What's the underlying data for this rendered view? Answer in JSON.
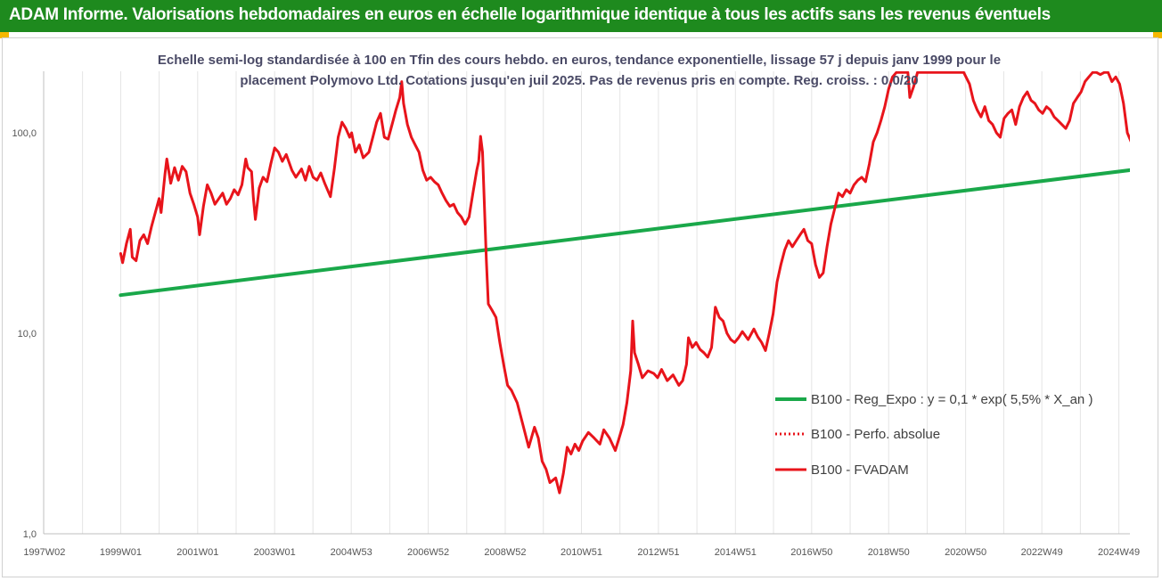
{
  "banner": {
    "title": "ADAM Informe. Valorisations hebdomadaires en euros en échelle logarithmique identique à tous les actifs sans les revenus éventuels"
  },
  "colors": {
    "banner": "#1e8a1e",
    "accent": "#f5b800",
    "regression": "#1aa84a",
    "price": "#e8141b"
  },
  "chart_data": {
    "type": "line",
    "title": "Echelle semi-log standardisée à 100 en Tfin des cours hebdo. en euros, tendance exponentielle, lissage 57 j depuis janv 1999 pour le placement Polymovo Ltd. Cotations jusqu'en juil 2025. Pas de revenus pris en compte. Reg. croiss. : 0,0/20",
    "y_scale": "log",
    "ylim": [
      1,
      200
    ],
    "y_ticks": [
      {
        "label": "1,0",
        "value": 1
      },
      {
        "label": "10,0",
        "value": 10
      },
      {
        "label": "100,0",
        "value": 100
      }
    ],
    "x_range": [
      1997.0,
      2025.6
    ],
    "x_ticks": [
      {
        "label": "1997W02",
        "year": 1997.02
      },
      {
        "label": "1999W01",
        "year": 1999.0
      },
      {
        "label": "2001W01",
        "year": 2001.0
      },
      {
        "label": "2003W01",
        "year": 2003.0
      },
      {
        "label": "2004W53",
        "year": 2004.99
      },
      {
        "label": "2006W52",
        "year": 2006.99
      },
      {
        "label": "2008W52",
        "year": 2008.99
      },
      {
        "label": "2010W51",
        "year": 2010.97
      },
      {
        "label": "2012W51",
        "year": 2012.97
      },
      {
        "label": "2014W51",
        "year": 2014.97
      },
      {
        "label": "2016W50",
        "year": 2016.95
      },
      {
        "label": "2018W50",
        "year": 2018.95
      },
      {
        "label": "2020W50",
        "year": 2020.95
      },
      {
        "label": "2022W49",
        "year": 2022.93
      },
      {
        "label": "2024W49",
        "year": 2024.93
      }
    ],
    "grid": "vertical",
    "legend_position": "right",
    "series": [
      {
        "name": "B100 - Reg_Expo : y = 0,1 * exp( 5,5% *  X_an )",
        "style": "solid",
        "color": "#1aa84a",
        "points": [
          [
            1999.0,
            15.5
          ],
          [
            2025.6,
            66.5
          ]
        ]
      },
      {
        "name": "B100 - Perfo. absolue",
        "style": "dotted",
        "color": "#e8141b",
        "points": []
      },
      {
        "name": "B100 - FVADAM",
        "style": "solid",
        "color": "#e8141b",
        "points": [
          [
            1999.0,
            25
          ],
          [
            1999.05,
            22.5
          ],
          [
            1999.15,
            28
          ],
          [
            1999.25,
            33
          ],
          [
            1999.3,
            24
          ],
          [
            1999.4,
            23
          ],
          [
            1999.5,
            29
          ],
          [
            1999.6,
            31
          ],
          [
            1999.7,
            28
          ],
          [
            1999.8,
            34
          ],
          [
            1999.9,
            40
          ],
          [
            2000.0,
            47
          ],
          [
            2000.05,
            40
          ],
          [
            2000.15,
            62
          ],
          [
            2000.2,
            74
          ],
          [
            2000.3,
            56
          ],
          [
            2000.4,
            67
          ],
          [
            2000.5,
            58
          ],
          [
            2000.6,
            68
          ],
          [
            2000.7,
            64
          ],
          [
            2000.8,
            50
          ],
          [
            2000.9,
            44
          ],
          [
            2001.0,
            38
          ],
          [
            2001.05,
            31
          ],
          [
            2001.15,
            43
          ],
          [
            2001.25,
            55
          ],
          [
            2001.35,
            50
          ],
          [
            2001.45,
            44
          ],
          [
            2001.55,
            47
          ],
          [
            2001.65,
            50
          ],
          [
            2001.75,
            44
          ],
          [
            2001.85,
            47
          ],
          [
            2001.95,
            52
          ],
          [
            2002.05,
            49
          ],
          [
            2002.15,
            55
          ],
          [
            2002.25,
            74
          ],
          [
            2002.3,
            67
          ],
          [
            2002.4,
            64
          ],
          [
            2002.45,
            47
          ],
          [
            2002.5,
            37
          ],
          [
            2002.6,
            53
          ],
          [
            2002.7,
            60
          ],
          [
            2002.8,
            57
          ],
          [
            2002.9,
            70
          ],
          [
            2003.0,
            84
          ],
          [
            2003.1,
            80
          ],
          [
            2003.2,
            72
          ],
          [
            2003.3,
            78
          ],
          [
            2003.45,
            65
          ],
          [
            2003.55,
            60
          ],
          [
            2003.7,
            66
          ],
          [
            2003.8,
            58
          ],
          [
            2003.9,
            68
          ],
          [
            2004.0,
            60
          ],
          [
            2004.1,
            58
          ],
          [
            2004.2,
            63
          ],
          [
            2004.3,
            56
          ],
          [
            2004.45,
            48
          ],
          [
            2004.55,
            66
          ],
          [
            2004.65,
            95
          ],
          [
            2004.75,
            113
          ],
          [
            2004.85,
            105
          ],
          [
            2004.95,
            95
          ],
          [
            2005.0,
            100
          ],
          [
            2005.1,
            80
          ],
          [
            2005.2,
            87
          ],
          [
            2005.3,
            75
          ],
          [
            2005.45,
            80
          ],
          [
            2005.55,
            95
          ],
          [
            2005.65,
            113
          ],
          [
            2005.75,
            125
          ],
          [
            2005.85,
            95
          ],
          [
            2005.95,
            93
          ],
          [
            2006.05,
            110
          ],
          [
            2006.15,
            130
          ],
          [
            2006.25,
            150
          ],
          [
            2006.3,
            180
          ],
          [
            2006.35,
            140
          ],
          [
            2006.45,
            110
          ],
          [
            2006.55,
            95
          ],
          [
            2006.65,
            87
          ],
          [
            2006.75,
            80
          ],
          [
            2006.85,
            65
          ],
          [
            2006.95,
            58
          ],
          [
            2007.05,
            60
          ],
          [
            2007.15,
            57
          ],
          [
            2007.25,
            55
          ],
          [
            2007.35,
            50
          ],
          [
            2007.45,
            46
          ],
          [
            2007.55,
            43
          ],
          [
            2007.65,
            44
          ],
          [
            2007.75,
            40
          ],
          [
            2007.85,
            38
          ],
          [
            2007.95,
            35
          ],
          [
            2008.05,
            38
          ],
          [
            2008.15,
            50
          ],
          [
            2008.25,
            65
          ],
          [
            2008.3,
            72
          ],
          [
            2008.35,
            96
          ],
          [
            2008.4,
            80
          ],
          [
            2008.5,
            23
          ],
          [
            2008.55,
            14
          ],
          [
            2008.65,
            13
          ],
          [
            2008.75,
            12
          ],
          [
            2008.85,
            9
          ],
          [
            2008.95,
            7
          ],
          [
            2009.05,
            5.5
          ],
          [
            2009.15,
            5.2
          ],
          [
            2009.3,
            4.5
          ],
          [
            2009.45,
            3.5
          ],
          [
            2009.6,
            2.7
          ],
          [
            2009.75,
            3.4
          ],
          [
            2009.85,
            3.0
          ],
          [
            2009.95,
            2.3
          ],
          [
            2010.05,
            2.1
          ],
          [
            2010.15,
            1.8
          ],
          [
            2010.3,
            1.9
          ],
          [
            2010.4,
            1.6
          ],
          [
            2010.5,
            2.0
          ],
          [
            2010.6,
            2.7
          ],
          [
            2010.7,
            2.5
          ],
          [
            2010.8,
            2.8
          ],
          [
            2010.9,
            2.6
          ],
          [
            2011.0,
            2.9
          ],
          [
            2011.15,
            3.2
          ],
          [
            2011.3,
            3.0
          ],
          [
            2011.45,
            2.8
          ],
          [
            2011.55,
            3.3
          ],
          [
            2011.7,
            3.0
          ],
          [
            2011.85,
            2.6
          ],
          [
            2011.95,
            3.0
          ],
          [
            2012.05,
            3.5
          ],
          [
            2012.15,
            4.5
          ],
          [
            2012.25,
            6.5
          ],
          [
            2012.3,
            11.5
          ],
          [
            2012.35,
            8
          ],
          [
            2012.45,
            7
          ],
          [
            2012.55,
            6
          ],
          [
            2012.7,
            6.5
          ],
          [
            2012.85,
            6.3
          ],
          [
            2012.95,
            6.0
          ],
          [
            2013.05,
            6.6
          ],
          [
            2013.2,
            5.8
          ],
          [
            2013.35,
            6.2
          ],
          [
            2013.5,
            5.5
          ],
          [
            2013.6,
            5.8
          ],
          [
            2013.7,
            7.0
          ],
          [
            2013.75,
            9.5
          ],
          [
            2013.85,
            8.5
          ],
          [
            2013.95,
            9.0
          ],
          [
            2014.05,
            8.3
          ],
          [
            2014.15,
            8.0
          ],
          [
            2014.25,
            7.6
          ],
          [
            2014.35,
            8.5
          ],
          [
            2014.45,
            13.5
          ],
          [
            2014.55,
            12
          ],
          [
            2014.65,
            11.5
          ],
          [
            2014.75,
            10
          ],
          [
            2014.85,
            9.3
          ],
          [
            2014.95,
            9.0
          ],
          [
            2015.05,
            9.5
          ],
          [
            2015.15,
            10.2
          ],
          [
            2015.3,
            9.3
          ],
          [
            2015.45,
            10.5
          ],
          [
            2015.55,
            9.6
          ],
          [
            2015.65,
            9.0
          ],
          [
            2015.75,
            8.2
          ],
          [
            2015.85,
            10.0
          ],
          [
            2015.95,
            12.5
          ],
          [
            2016.05,
            18
          ],
          [
            2016.15,
            22
          ],
          [
            2016.25,
            26
          ],
          [
            2016.35,
            29
          ],
          [
            2016.45,
            27
          ],
          [
            2016.55,
            29
          ],
          [
            2016.65,
            31
          ],
          [
            2016.75,
            33
          ],
          [
            2016.85,
            29
          ],
          [
            2016.95,
            28
          ],
          [
            2017.05,
            22
          ],
          [
            2017.15,
            19
          ],
          [
            2017.25,
            20
          ],
          [
            2017.35,
            27
          ],
          [
            2017.45,
            35
          ],
          [
            2017.55,
            42
          ],
          [
            2017.65,
            50
          ],
          [
            2017.75,
            48
          ],
          [
            2017.85,
            52
          ],
          [
            2017.95,
            50
          ],
          [
            2018.05,
            55
          ],
          [
            2018.15,
            58
          ],
          [
            2018.25,
            60
          ],
          [
            2018.35,
            57
          ],
          [
            2018.45,
            70
          ],
          [
            2018.55,
            90
          ],
          [
            2018.65,
            100
          ],
          [
            2018.75,
            115
          ],
          [
            2018.85,
            135
          ],
          [
            2018.95,
            165
          ],
          [
            2019.05,
            190
          ],
          [
            2019.15,
            200
          ],
          [
            2019.25,
            200
          ],
          [
            2019.35,
            200
          ],
          [
            2019.45,
            200
          ],
          [
            2019.5,
            150
          ],
          [
            2019.6,
            170
          ],
          [
            2019.7,
            200
          ],
          [
            2019.8,
            200
          ],
          [
            2019.95,
            200
          ],
          [
            2020.1,
            200
          ],
          [
            2020.3,
            200
          ],
          [
            2020.5,
            200
          ],
          [
            2020.7,
            200
          ],
          [
            2020.9,
            200
          ],
          [
            2021.05,
            175
          ],
          [
            2021.15,
            145
          ],
          [
            2021.25,
            130
          ],
          [
            2021.35,
            120
          ],
          [
            2021.45,
            135
          ],
          [
            2021.55,
            115
          ],
          [
            2021.65,
            110
          ],
          [
            2021.75,
            100
          ],
          [
            2021.85,
            95
          ],
          [
            2021.95,
            118
          ],
          [
            2022.05,
            125
          ],
          [
            2022.15,
            130
          ],
          [
            2022.25,
            110
          ],
          [
            2022.35,
            135
          ],
          [
            2022.45,
            150
          ],
          [
            2022.55,
            160
          ],
          [
            2022.65,
            145
          ],
          [
            2022.75,
            140
          ],
          [
            2022.85,
            130
          ],
          [
            2022.95,
            125
          ],
          [
            2023.05,
            135
          ],
          [
            2023.15,
            130
          ],
          [
            2023.25,
            120
          ],
          [
            2023.35,
            115
          ],
          [
            2023.45,
            110
          ],
          [
            2023.55,
            105
          ],
          [
            2023.65,
            115
          ],
          [
            2023.75,
            140
          ],
          [
            2023.85,
            150
          ],
          [
            2023.95,
            160
          ],
          [
            2024.05,
            180
          ],
          [
            2024.15,
            190
          ],
          [
            2024.25,
            200
          ],
          [
            2024.35,
            200
          ],
          [
            2024.45,
            195
          ],
          [
            2024.55,
            200
          ],
          [
            2024.65,
            200
          ],
          [
            2024.75,
            180
          ],
          [
            2024.85,
            190
          ],
          [
            2024.95,
            175
          ],
          [
            2025.05,
            140
          ],
          [
            2025.15,
            100
          ],
          [
            2025.25,
            90
          ],
          [
            2025.35,
            115
          ],
          [
            2025.45,
            108
          ],
          [
            2025.55,
            100
          ]
        ]
      }
    ]
  }
}
